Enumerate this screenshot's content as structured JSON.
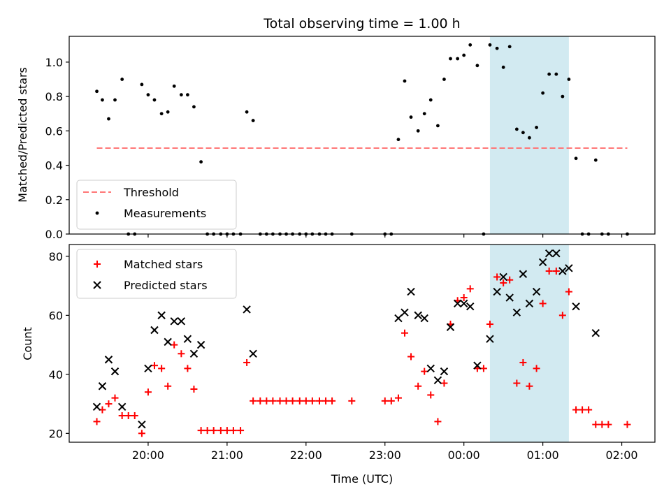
{
  "chart_data": [
    {
      "type": "scatter",
      "title": "Total observing time = 1.00 h",
      "xlabel": "",
      "ylabel": "Matched/Predicted stars",
      "ylim": [
        0,
        1.15
      ],
      "yticks": [
        "0.0",
        "0.2",
        "0.4",
        "0.6",
        "0.8",
        "1.0"
      ],
      "threshold": {
        "name": "Threshold",
        "value": 0.5,
        "x_range": [
          19.35,
          2.07
        ],
        "color": "#ff7777",
        "style": "dashed"
      },
      "highlight_span": {
        "x": [
          0.33,
          1.33
        ],
        "color": "#add8e6"
      },
      "legend_position": "lower-left",
      "legend": [
        "Threshold",
        "Measurements"
      ],
      "series": [
        {
          "name": "Measurements",
          "color": "#000000",
          "marker": "dot",
          "x": [
            19.35,
            19.42,
            19.5,
            19.58,
            19.67,
            19.75,
            19.83,
            19.92,
            20.0,
            20.08,
            20.17,
            20.25,
            20.33,
            20.42,
            20.5,
            20.58,
            20.67,
            20.75,
            20.83,
            20.92,
            21.0,
            21.08,
            21.17,
            21.25,
            21.33,
            21.42,
            21.5,
            21.58,
            21.67,
            21.75,
            21.83,
            21.92,
            22.0,
            22.08,
            22.17,
            22.25,
            22.33,
            22.58,
            23.0,
            23.08,
            23.17,
            23.25,
            23.33,
            23.42,
            23.5,
            23.58,
            23.67,
            23.75,
            23.83,
            23.92,
            0.0,
            0.08,
            0.17,
            0.25,
            0.33,
            0.42,
            0.5,
            0.58,
            0.67,
            0.75,
            0.83,
            0.92,
            1.0,
            1.08,
            1.17,
            1.25,
            1.33,
            1.42,
            1.5,
            1.58,
            1.67,
            1.75,
            1.83,
            2.07
          ],
          "y": [
            0.83,
            0.78,
            0.67,
            0.78,
            0.9,
            0.0,
            0.0,
            0.87,
            0.81,
            0.78,
            0.7,
            0.71,
            0.86,
            0.81,
            0.81,
            0.74,
            0.42,
            0.0,
            0.0,
            0.0,
            0.0,
            0.0,
            0.0,
            0.71,
            0.66,
            0.0,
            0.0,
            0.0,
            0.0,
            0.0,
            0.0,
            0.0,
            0.0,
            0.0,
            0.0,
            0.0,
            0.0,
            0.0,
            0.0,
            0.0,
            0.55,
            0.89,
            0.68,
            0.6,
            0.7,
            0.78,
            0.63,
            0.9,
            1.02,
            1.02,
            1.04,
            1.1,
            0.98,
            0.0,
            1.1,
            1.08,
            0.97,
            1.09,
            0.61,
            0.59,
            0.56,
            0.62,
            0.82,
            0.93,
            0.93,
            0.8,
            0.9,
            0.44,
            0.0,
            0.0,
            0.43,
            0.0,
            0.0,
            0.0
          ]
        }
      ]
    },
    {
      "type": "scatter",
      "title": "",
      "xlabel": "Time (UTC)",
      "ylabel": "Count",
      "ylim": [
        17,
        84
      ],
      "yticks": [
        "20",
        "40",
        "60",
        "80"
      ],
      "xticks": [
        "20:00",
        "21:00",
        "22:00",
        "23:00",
        "00:00",
        "01:00",
        "02:00"
      ],
      "highlight_span": {
        "x": [
          0.33,
          1.33
        ],
        "color": "#add8e6"
      },
      "legend_position": "upper-left",
      "legend": [
        "Matched stars",
        "Predicted stars"
      ],
      "series": [
        {
          "name": "Matched stars",
          "color": "#ff0000",
          "marker": "plus",
          "x": [
            19.35,
            19.42,
            19.5,
            19.58,
            19.67,
            19.75,
            19.83,
            19.92,
            20.0,
            20.08,
            20.17,
            20.25,
            20.33,
            20.42,
            20.5,
            20.58,
            20.67,
            20.75,
            20.83,
            20.92,
            21.0,
            21.08,
            21.17,
            21.25,
            21.33,
            21.42,
            21.5,
            21.58,
            21.67,
            21.75,
            21.83,
            21.92,
            22.0,
            22.08,
            22.17,
            22.25,
            22.33,
            22.58,
            23.0,
            23.08,
            23.17,
            23.25,
            23.33,
            23.42,
            23.5,
            23.58,
            23.67,
            23.75,
            23.83,
            23.92,
            0.0,
            0.08,
            0.17,
            0.25,
            0.33,
            0.42,
            0.5,
            0.58,
            0.67,
            0.75,
            0.83,
            0.92,
            1.0,
            1.08,
            1.17,
            1.25,
            1.33,
            1.42,
            1.5,
            1.58,
            1.67,
            1.75,
            1.83,
            2.07
          ],
          "y": [
            24,
            28,
            30,
            32,
            26,
            26,
            26,
            20,
            34,
            43,
            42,
            36,
            50,
            47,
            42,
            35,
            21,
            21,
            21,
            21,
            21,
            21,
            21,
            44,
            31,
            31,
            31,
            31,
            31,
            31,
            31,
            31,
            31,
            31,
            31,
            31,
            31,
            31,
            31,
            31,
            32,
            54,
            46,
            36,
            41,
            33,
            24,
            37,
            57,
            65,
            66,
            69,
            42,
            42,
            57,
            73,
            71,
            72,
            37,
            44,
            36,
            42,
            64,
            75,
            75,
            60,
            68,
            28,
            28,
            28,
            23,
            23,
            23,
            23
          ]
        },
        {
          "name": "Predicted stars",
          "color": "#000000",
          "marker": "x",
          "x": [
            19.35,
            19.42,
            19.5,
            19.58,
            19.67,
            19.92,
            20.0,
            20.08,
            20.17,
            20.25,
            20.33,
            20.42,
            20.5,
            20.58,
            20.67,
            21.25,
            21.33,
            23.17,
            23.25,
            23.33,
            23.42,
            23.5,
            23.58,
            23.67,
            23.75,
            23.83,
            23.92,
            0.0,
            0.08,
            0.17,
            0.33,
            0.42,
            0.5,
            0.58,
            0.67,
            0.75,
            0.83,
            0.92,
            1.0,
            1.08,
            1.17,
            1.25,
            1.33,
            1.42,
            1.67
          ],
          "y": [
            29,
            36,
            45,
            41,
            29,
            23,
            42,
            55,
            60,
            51,
            58,
            58,
            52,
            47,
            50,
            62,
            47,
            59,
            61,
            68,
            60,
            59,
            42,
            38,
            41,
            56,
            64,
            64,
            63,
            43,
            52,
            68,
            73,
            66,
            61,
            74,
            64,
            68,
            78,
            81,
            81,
            75,
            76,
            63,
            54
          ]
        }
      ]
    }
  ]
}
